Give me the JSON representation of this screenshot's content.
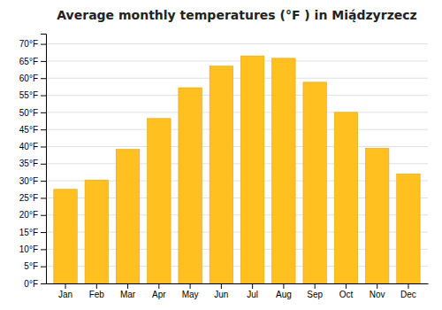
{
  "chart_data": {
    "type": "bar",
    "title": "Average monthly temperatures (°F ) in Mią́dzyrzecz",
    "categories": [
      "Jan",
      "Feb",
      "Mar",
      "Apr",
      "May",
      "Jun",
      "Jul",
      "Aug",
      "Sep",
      "Oct",
      "Nov",
      "Dec"
    ],
    "values": [
      27.5,
      30.2,
      39.2,
      48.2,
      57.2,
      63.5,
      66.5,
      65.8,
      58.8,
      50.0,
      39.5,
      32.0
    ],
    "color": "#FFC020",
    "ylim": [
      0,
      73
    ],
    "yticks": [
      {
        "value": 0,
        "label": "0°F"
      },
      {
        "value": 5,
        "label": "5°F"
      },
      {
        "value": 10,
        "label": "10°F"
      },
      {
        "value": 15,
        "label": "15°F"
      },
      {
        "value": 20,
        "label": "20°F"
      },
      {
        "value": 25,
        "label": "25°F"
      },
      {
        "value": 30,
        "label": "30°F"
      },
      {
        "value": 35,
        "label": "35°F"
      },
      {
        "value": 40,
        "label": "40°F"
      },
      {
        "value": 45,
        "label": "45°F"
      },
      {
        "value": 50,
        "label": "50°F"
      },
      {
        "value": 55,
        "label": "55°F"
      },
      {
        "value": 60,
        "label": "60°F"
      },
      {
        "value": 65,
        "label": "65°F"
      },
      {
        "value": 70,
        "label": "70°F"
      }
    ],
    "grid": true
  }
}
